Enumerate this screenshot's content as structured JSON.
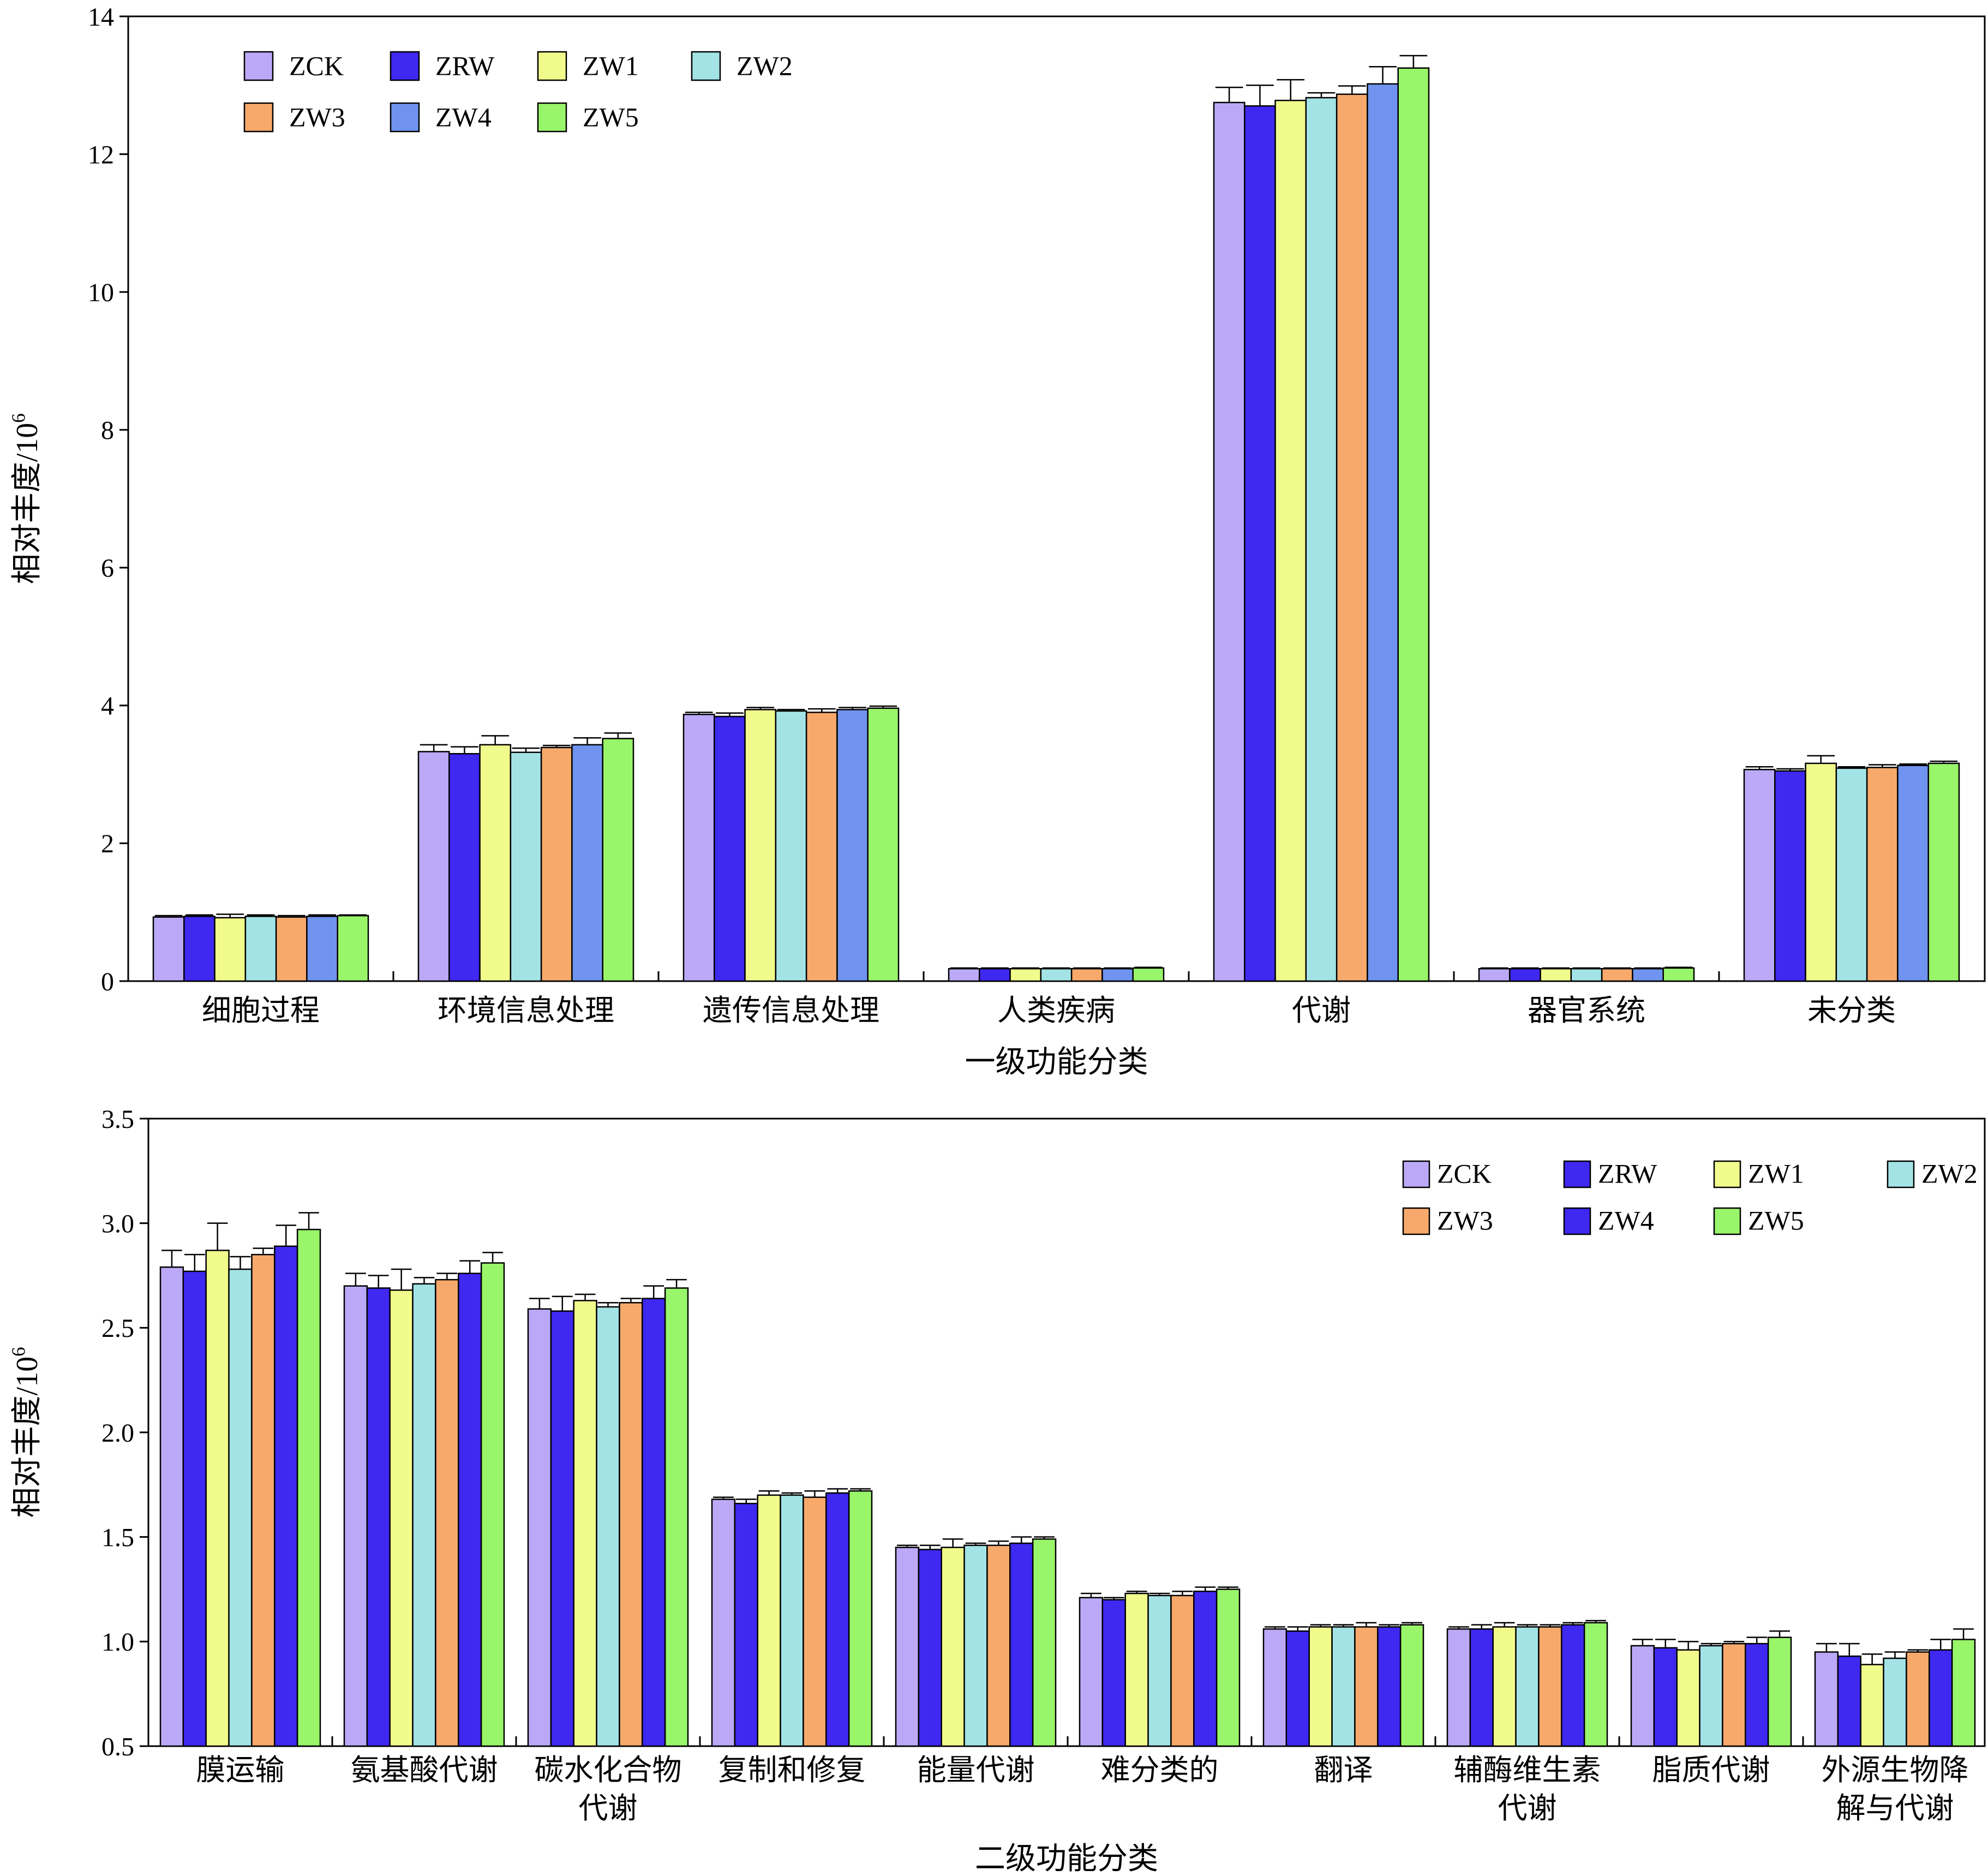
{
  "colors": {
    "ZCK": "#bba9f7",
    "ZRW": "#3f28f0",
    "ZW1": "#f1fb8c",
    "ZW2": "#a3e3e6",
    "ZW3": "#f7a96b",
    "ZW4_top": "#6f93ef",
    "ZW4_bottom": "#3f28f0",
    "ZW5": "#99f56a"
  },
  "chart_data": [
    {
      "type": "bar",
      "xlabel": "一级功能分类",
      "ylabel": "相对丰度/10",
      "ylabel_sup": "6",
      "ylim": [
        0,
        14
      ],
      "yticks": [
        "0",
        "2",
        "4",
        "6",
        "8",
        "10",
        "12",
        "14"
      ],
      "legend_position": "top-left",
      "categories": [
        "细胞过程",
        "环境信息处理",
        "遗传信息处理",
        "人类疾病",
        "代谢",
        "器官系统",
        "未分类"
      ],
      "series": [
        {
          "name": "ZCK",
          "values": [
            0.93,
            3.33,
            3.87,
            0.18,
            12.75,
            0.18,
            3.07
          ],
          "errors": [
            0.02,
            0.1,
            0.03,
            0.01,
            0.22,
            0.01,
            0.04
          ]
        },
        {
          "name": "ZRW",
          "values": [
            0.94,
            3.3,
            3.84,
            0.18,
            12.7,
            0.18,
            3.05
          ],
          "errors": [
            0.02,
            0.1,
            0.05,
            0.01,
            0.3,
            0.01,
            0.03
          ]
        },
        {
          "name": "ZW1",
          "values": [
            0.92,
            3.43,
            3.94,
            0.18,
            12.78,
            0.18,
            3.16
          ],
          "errors": [
            0.05,
            0.13,
            0.03,
            0.01,
            0.3,
            0.01,
            0.11
          ]
        },
        {
          "name": "ZW2",
          "values": [
            0.94,
            3.32,
            3.92,
            0.18,
            12.82,
            0.18,
            3.09
          ],
          "errors": [
            0.02,
            0.06,
            0.02,
            0.01,
            0.07,
            0.01,
            0.02
          ]
        },
        {
          "name": "ZW3",
          "values": [
            0.93,
            3.39,
            3.9,
            0.18,
            12.87,
            0.18,
            3.1
          ],
          "errors": [
            0.02,
            0.03,
            0.05,
            0.01,
            0.12,
            0.01,
            0.04
          ]
        },
        {
          "name": "ZW4",
          "values": [
            0.94,
            3.43,
            3.94,
            0.18,
            13.02,
            0.18,
            3.13
          ],
          "errors": [
            0.02,
            0.1,
            0.03,
            0.01,
            0.25,
            0.01,
            0.02
          ]
        },
        {
          "name": "ZW5",
          "values": [
            0.95,
            3.52,
            3.96,
            0.19,
            13.25,
            0.19,
            3.16
          ],
          "errors": [
            0.01,
            0.08,
            0.03,
            0.01,
            0.18,
            0.01,
            0.03
          ]
        }
      ]
    },
    {
      "type": "bar",
      "xlabel": "二级功能分类",
      "ylabel": "相对丰度/10",
      "ylabel_sup": "6",
      "ylim": [
        0.5,
        3.5
      ],
      "yticks": [
        "0.5",
        "1.0",
        "1.5",
        "2.0",
        "2.5",
        "3.0",
        "3.5"
      ],
      "legend_position": "top-right",
      "categories": [
        "膜运输",
        "氨基酸代谢",
        "碳水化合物\n代谢",
        "复制和修复",
        "能量代谢",
        "难分类的",
        "翻译",
        "辅酶维生素\n代谢",
        "脂质代谢",
        "外源生物降\n解与代谢"
      ],
      "series": [
        {
          "name": "ZCK",
          "values": [
            2.79,
            2.7,
            2.59,
            1.68,
            1.45,
            1.21,
            1.06,
            1.06,
            0.98,
            0.95
          ],
          "errors": [
            0.08,
            0.06,
            0.05,
            0.01,
            0.01,
            0.02,
            0.01,
            0.01,
            0.03,
            0.04
          ]
        },
        {
          "name": "ZRW",
          "values": [
            2.77,
            2.69,
            2.58,
            1.66,
            1.44,
            1.2,
            1.05,
            1.06,
            0.97,
            0.93
          ],
          "errors": [
            0.08,
            0.06,
            0.07,
            0.02,
            0.02,
            0.01,
            0.02,
            0.02,
            0.04,
            0.06
          ]
        },
        {
          "name": "ZW1",
          "values": [
            2.87,
            2.68,
            2.63,
            1.7,
            1.45,
            1.23,
            1.07,
            1.07,
            0.96,
            0.89
          ],
          "errors": [
            0.13,
            0.1,
            0.03,
            0.02,
            0.04,
            0.01,
            0.01,
            0.02,
            0.04,
            0.05
          ]
        },
        {
          "name": "ZW2",
          "values": [
            2.78,
            2.71,
            2.6,
            1.7,
            1.46,
            1.22,
            1.07,
            1.07,
            0.98,
            0.92
          ],
          "errors": [
            0.06,
            0.03,
            0.02,
            0.01,
            0.01,
            0.01,
            0.01,
            0.01,
            0.01,
            0.03
          ]
        },
        {
          "name": "ZW3",
          "values": [
            2.85,
            2.73,
            2.62,
            1.69,
            1.46,
            1.22,
            1.07,
            1.07,
            0.99,
            0.95
          ],
          "errors": [
            0.03,
            0.03,
            0.02,
            0.03,
            0.02,
            0.02,
            0.02,
            0.01,
            0.01,
            0.01
          ]
        },
        {
          "name": "ZW4",
          "values": [
            2.89,
            2.76,
            2.64,
            1.71,
            1.47,
            1.24,
            1.07,
            1.08,
            0.99,
            0.96
          ],
          "errors": [
            0.1,
            0.06,
            0.06,
            0.02,
            0.03,
            0.02,
            0.01,
            0.01,
            0.03,
            0.05
          ]
        },
        {
          "name": "ZW5",
          "values": [
            2.97,
            2.81,
            2.69,
            1.72,
            1.49,
            1.25,
            1.08,
            1.09,
            1.02,
            1.01
          ],
          "errors": [
            0.08,
            0.05,
            0.04,
            0.01,
            0.01,
            0.01,
            0.01,
            0.01,
            0.03,
            0.05
          ]
        }
      ]
    }
  ]
}
